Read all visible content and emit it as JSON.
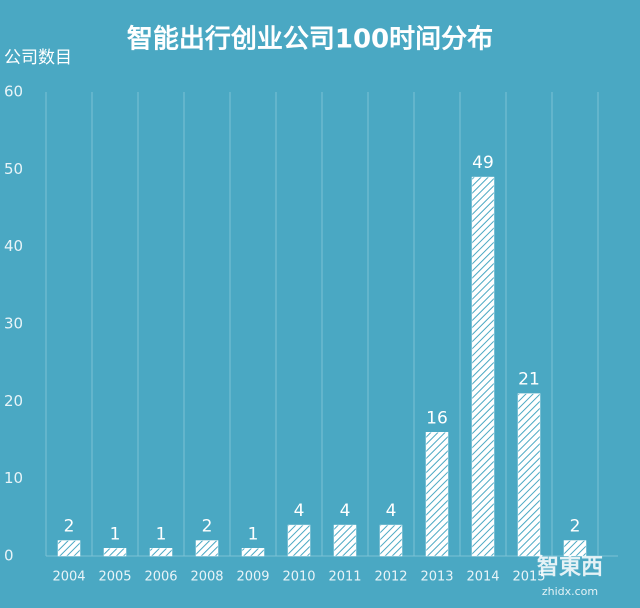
{
  "chart_data": {
    "type": "bar",
    "title": "智能出行创业公司100时间分布",
    "y_label": "公司数目",
    "categories": [
      "2004",
      "2005",
      "2006",
      "2008",
      "2009",
      "2010",
      "2011",
      "2012",
      "2013",
      "2014",
      "2015",
      null
    ],
    "values": [
      2,
      1,
      1,
      2,
      1,
      4,
      4,
      4,
      16,
      49,
      21,
      2
    ],
    "ylim": [
      0,
      60
    ],
    "yticks": [
      0,
      10,
      20,
      30,
      40,
      50,
      60
    ],
    "grid": true,
    "color": "#ffffff",
    "watermark": "智東西",
    "watermark_url": "zhidx.com"
  }
}
